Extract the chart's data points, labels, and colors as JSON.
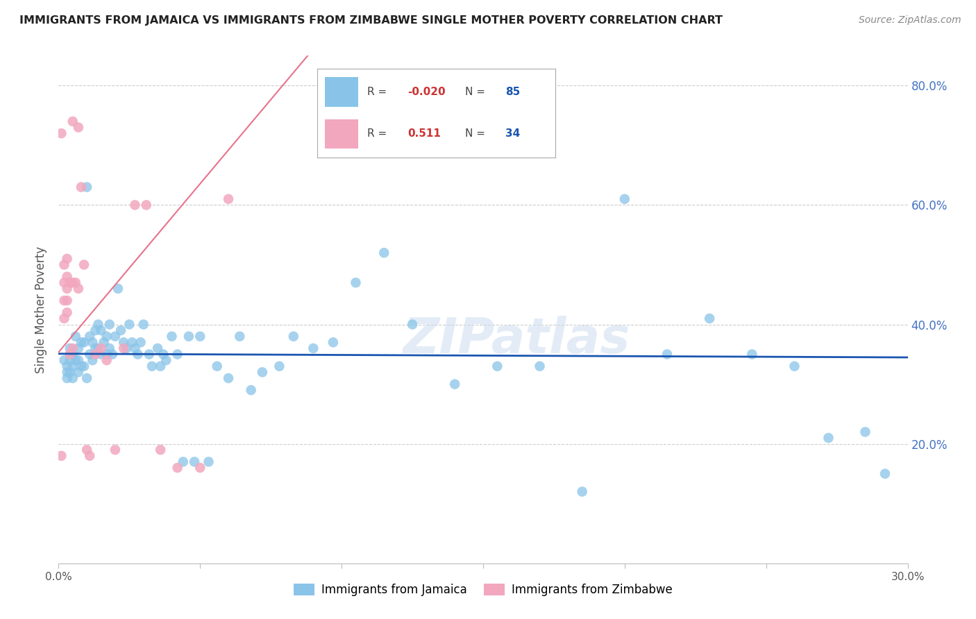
{
  "title": "IMMIGRANTS FROM JAMAICA VS IMMIGRANTS FROM ZIMBABWE SINGLE MOTHER POVERTY CORRELATION CHART",
  "source": "Source: ZipAtlas.com",
  "ylabel": "Single Mother Poverty",
  "xlim": [
    0.0,
    0.3
  ],
  "ylim": [
    0.0,
    0.85
  ],
  "xtick_positions": [
    0.0,
    0.05,
    0.1,
    0.15,
    0.2,
    0.25,
    0.3
  ],
  "xtick_labels": [
    "0.0%",
    "",
    "",
    "",
    "",
    "",
    "30.0%"
  ],
  "ytick_positions": [
    0.2,
    0.4,
    0.6,
    0.8
  ],
  "ytick_labels": [
    "20.0%",
    "40.0%",
    "60.0%",
    "80.0%"
  ],
  "jamaica_color": "#89c4e8",
  "zimbabwe_color": "#f2a7bf",
  "jamaica_line_color": "#1a56b0",
  "zimbabwe_line_color": "#e8728a",
  "legend_r_jamaica": "-0.020",
  "legend_n_jamaica": "85",
  "legend_r_zimbabwe": "0.511",
  "legend_n_zimbabwe": "34",
  "watermark": "ZIPatlas",
  "jamaica_x": [
    0.002,
    0.003,
    0.003,
    0.003,
    0.004,
    0.004,
    0.004,
    0.005,
    0.005,
    0.005,
    0.006,
    0.006,
    0.007,
    0.007,
    0.007,
    0.008,
    0.008,
    0.009,
    0.009,
    0.01,
    0.01,
    0.011,
    0.011,
    0.012,
    0.012,
    0.013,
    0.013,
    0.014,
    0.014,
    0.015,
    0.015,
    0.016,
    0.017,
    0.017,
    0.018,
    0.018,
    0.019,
    0.02,
    0.021,
    0.022,
    0.023,
    0.024,
    0.025,
    0.026,
    0.027,
    0.028,
    0.029,
    0.03,
    0.032,
    0.033,
    0.035,
    0.036,
    0.037,
    0.038,
    0.04,
    0.042,
    0.044,
    0.046,
    0.048,
    0.05,
    0.053,
    0.056,
    0.06,
    0.064,
    0.068,
    0.072,
    0.078,
    0.083,
    0.09,
    0.097,
    0.105,
    0.115,
    0.125,
    0.14,
    0.155,
    0.17,
    0.185,
    0.2,
    0.215,
    0.23,
    0.245,
    0.26,
    0.272,
    0.285,
    0.292
  ],
  "jamaica_y": [
    0.34,
    0.33,
    0.32,
    0.31,
    0.36,
    0.34,
    0.32,
    0.35,
    0.33,
    0.31,
    0.38,
    0.34,
    0.36,
    0.34,
    0.32,
    0.37,
    0.33,
    0.37,
    0.33,
    0.63,
    0.31,
    0.38,
    0.35,
    0.37,
    0.34,
    0.39,
    0.36,
    0.4,
    0.36,
    0.39,
    0.35,
    0.37,
    0.38,
    0.35,
    0.4,
    0.36,
    0.35,
    0.38,
    0.46,
    0.39,
    0.37,
    0.36,
    0.4,
    0.37,
    0.36,
    0.35,
    0.37,
    0.4,
    0.35,
    0.33,
    0.36,
    0.33,
    0.35,
    0.34,
    0.38,
    0.35,
    0.17,
    0.38,
    0.17,
    0.38,
    0.17,
    0.33,
    0.31,
    0.38,
    0.29,
    0.32,
    0.33,
    0.38,
    0.36,
    0.37,
    0.47,
    0.52,
    0.4,
    0.3,
    0.33,
    0.33,
    0.12,
    0.61,
    0.35,
    0.41,
    0.35,
    0.33,
    0.21,
    0.22,
    0.15
  ],
  "zimbabwe_x": [
    0.001,
    0.001,
    0.002,
    0.002,
    0.002,
    0.002,
    0.003,
    0.003,
    0.003,
    0.003,
    0.003,
    0.004,
    0.004,
    0.005,
    0.005,
    0.005,
    0.006,
    0.007,
    0.007,
    0.008,
    0.009,
    0.01,
    0.011,
    0.013,
    0.015,
    0.017,
    0.02,
    0.023,
    0.027,
    0.031,
    0.036,
    0.042,
    0.05,
    0.06
  ],
  "zimbabwe_y": [
    0.72,
    0.18,
    0.5,
    0.47,
    0.44,
    0.41,
    0.51,
    0.48,
    0.46,
    0.44,
    0.42,
    0.47,
    0.35,
    0.74,
    0.47,
    0.36,
    0.47,
    0.73,
    0.46,
    0.63,
    0.5,
    0.19,
    0.18,
    0.35,
    0.36,
    0.34,
    0.19,
    0.36,
    0.6,
    0.6,
    0.19,
    0.16,
    0.16,
    0.61
  ],
  "background_color": "#ffffff",
  "grid_color": "#cccccc",
  "spine_color": "#bbbbbb"
}
